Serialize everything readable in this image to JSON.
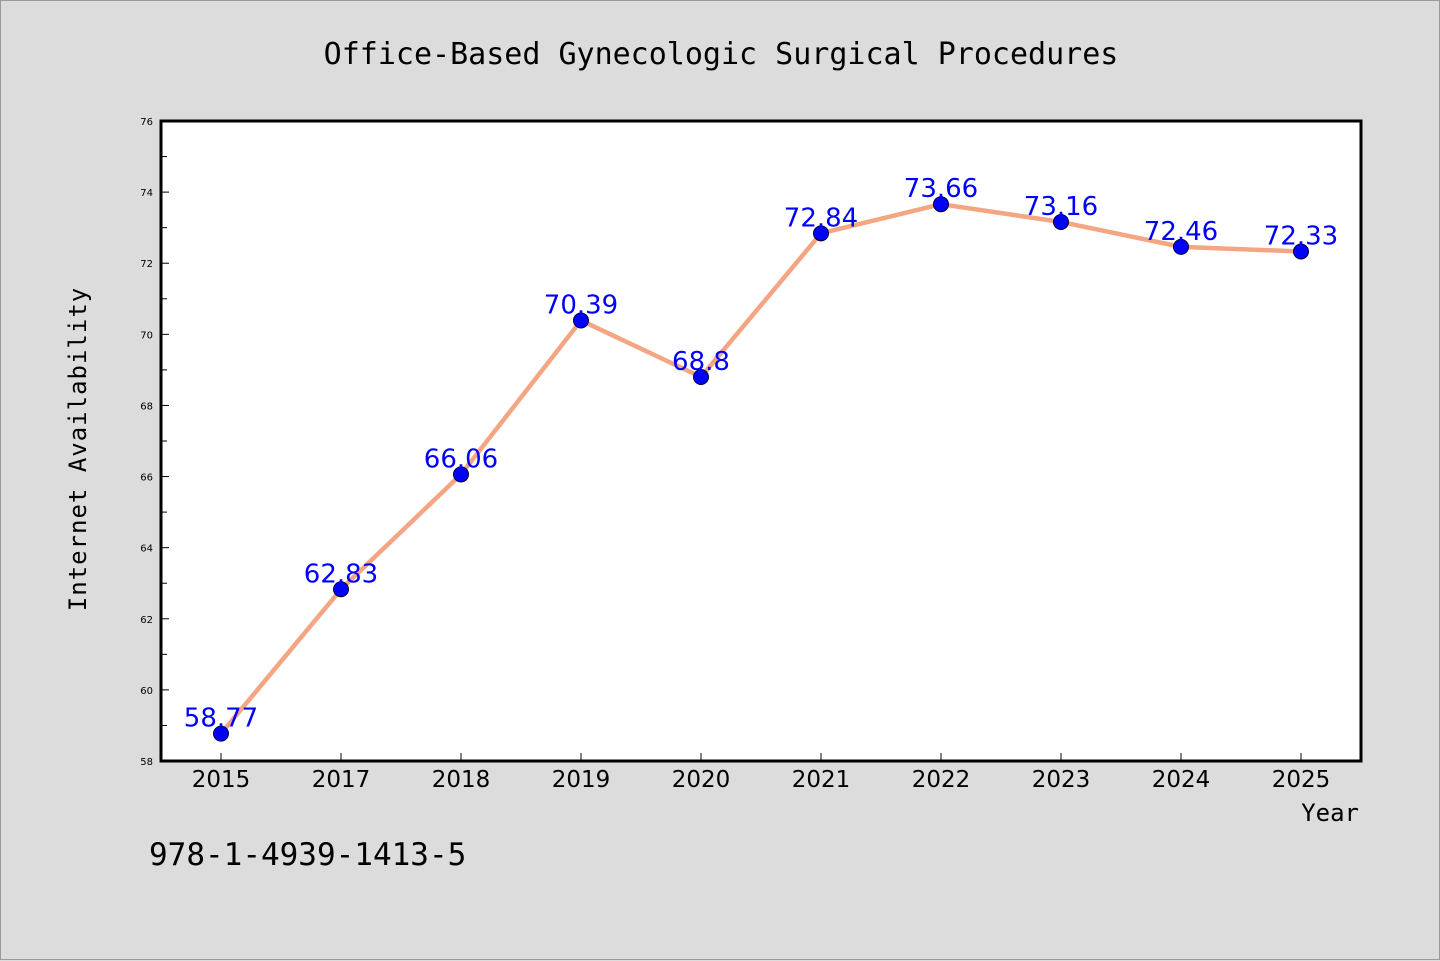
{
  "chart_data": {
    "type": "line",
    "title": "Office-Based Gynecologic Surgical Procedures",
    "xlabel": "Year",
    "ylabel": "Internet Availability",
    "categories": [
      "2015",
      "2017",
      "2018",
      "2019",
      "2020",
      "2021",
      "2022",
      "2023",
      "2024",
      "2025"
    ],
    "values": [
      58.77,
      62.83,
      66.06,
      70.39,
      68.8,
      72.84,
      73.66,
      73.16,
      72.46,
      72.33
    ],
    "data_labels": [
      "58.77",
      "62.83",
      "66.06",
      "70.39",
      "68.8",
      "72.84",
      "73.66",
      "73.16",
      "72.46",
      "72.33"
    ],
    "ylim": [
      58,
      76
    ],
    "yticks": [
      "58",
      "60",
      "62",
      "64",
      "66",
      "68",
      "70",
      "72",
      "74",
      "76"
    ],
    "grid": false,
    "colors": {
      "line": "#f4a582",
      "marker": "#0000ff",
      "label": "#0000ff",
      "background": "#dcdcdc",
      "plot_bg": "#ffffff"
    }
  },
  "annotation": "978-1-4939-1413-5"
}
